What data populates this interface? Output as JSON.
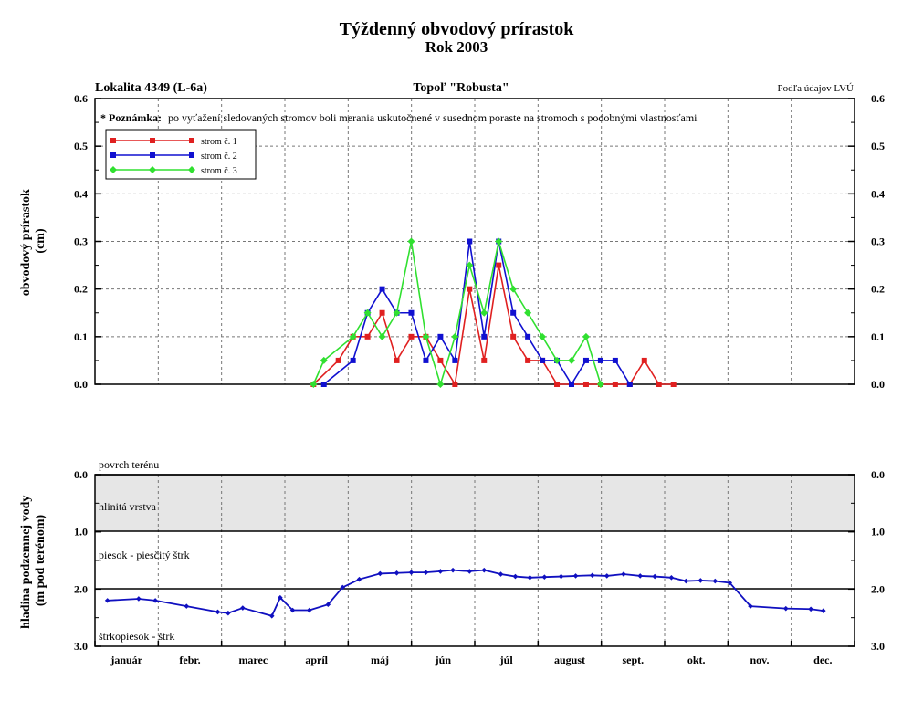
{
  "title": "Týždenný obvodový prírastok",
  "subtitle": "Rok 2003",
  "header": {
    "left": "Lokalita 4349 (L-6a)",
    "center": "Topoľ \"Robusta\"",
    "right": "Podľa údajov LVÚ"
  },
  "note": {
    "label": "* Poznámka:",
    "text": "po vyťažení sledovaných stromov boli merania uskutočnené v susednom poraste na stromoch s podobnými vlastnosťami"
  },
  "months": [
    "január",
    "febr.",
    "marec",
    "apríl",
    "máj",
    "jún",
    "júl",
    "august",
    "sept.",
    "okt.",
    "nov.",
    "dec."
  ],
  "layer_labels": {
    "surface": "povrch terénu",
    "clay": "hlinitá vrstva",
    "sand": "piesok - piesčitý štrk",
    "gravel": "štrkopiesok - štrk"
  },
  "colors": {
    "series1": "#e02020",
    "series2": "#1010d0",
    "series3": "#30e030",
    "groundwater": "#1010c0",
    "clay_fill": "#e6e6e6"
  },
  "chart_data": [
    {
      "type": "line",
      "ylabel": "obvodový prírastok (cm)",
      "ylim": [
        0,
        0.6
      ],
      "yticks": [
        "0.0",
        "0.1",
        "0.2",
        "0.3",
        "0.4",
        "0.5",
        "0.6"
      ],
      "x_unit": "day of year",
      "xlim": [
        0,
        365
      ],
      "grid": true,
      "legend_position": "top-left",
      "series": [
        {
          "name": "strom č. 1",
          "marker": "square",
          "points": [
            [
              105,
              0.0
            ],
            [
              117,
              0.05
            ],
            [
              124,
              0.1
            ],
            [
              131,
              0.1
            ],
            [
              138,
              0.15
            ],
            [
              145,
              0.05
            ],
            [
              152,
              0.1
            ],
            [
              159,
              0.1
            ],
            [
              166,
              0.05
            ],
            [
              173,
              0.0
            ],
            [
              180,
              0.2
            ],
            [
              187,
              0.05
            ],
            [
              194,
              0.25
            ],
            [
              201,
              0.1
            ],
            [
              208,
              0.05
            ],
            [
              215,
              0.05
            ],
            [
              222,
              0.0
            ],
            [
              229,
              0.0
            ],
            [
              236,
              0.0
            ],
            [
              243,
              0.0
            ],
            [
              250,
              0.0
            ],
            [
              257,
              0.0
            ],
            [
              264,
              0.05
            ],
            [
              271,
              0.0
            ],
            [
              278,
              0.0
            ]
          ]
        },
        {
          "name": "strom č. 2",
          "marker": "square",
          "points": [
            [
              110,
              0.0
            ],
            [
              124,
              0.05
            ],
            [
              131,
              0.15
            ],
            [
              138,
              0.2
            ],
            [
              145,
              0.15
            ],
            [
              152,
              0.15
            ],
            [
              159,
              0.05
            ],
            [
              166,
              0.1
            ],
            [
              173,
              0.05
            ],
            [
              180,
              0.3
            ],
            [
              187,
              0.1
            ],
            [
              194,
              0.3
            ],
            [
              201,
              0.15
            ],
            [
              208,
              0.1
            ],
            [
              215,
              0.05
            ],
            [
              222,
              0.05
            ],
            [
              229,
              0.0
            ],
            [
              236,
              0.05
            ],
            [
              243,
              0.05
            ],
            [
              250,
              0.05
            ],
            [
              257,
              0.0
            ]
          ]
        },
        {
          "name": "strom č. 3",
          "marker": "diamond",
          "points": [
            [
              105,
              0.0
            ],
            [
              110,
              0.05
            ],
            [
              124,
              0.1
            ],
            [
              131,
              0.15
            ],
            [
              138,
              0.1
            ],
            [
              145,
              0.15
            ],
            [
              152,
              0.3
            ],
            [
              159,
              0.1
            ],
            [
              166,
              0.0
            ],
            [
              173,
              0.1
            ],
            [
              180,
              0.25
            ],
            [
              187,
              0.15
            ],
            [
              194,
              0.3
            ],
            [
              201,
              0.2
            ],
            [
              208,
              0.15
            ],
            [
              215,
              0.1
            ],
            [
              222,
              0.05
            ],
            [
              229,
              0.05
            ],
            [
              236,
              0.1
            ],
            [
              243,
              0.0
            ]
          ]
        }
      ]
    },
    {
      "type": "line",
      "ylabel": "hladina podzemnej vody (m pod terénom)",
      "ylim": [
        0,
        3
      ],
      "y_inverted": true,
      "yticks": [
        "0.0",
        "1.0",
        "2.0",
        "3.0"
      ],
      "x_unit": "day of year",
      "xlim": [
        0,
        365
      ],
      "series": [
        {
          "name": "hladina podzemnej vody",
          "marker": "diamond",
          "points": [
            [
              6,
              2.2
            ],
            [
              21,
              2.17
            ],
            [
              29,
              2.2
            ],
            [
              44,
              2.3
            ],
            [
              59,
              2.4
            ],
            [
              64,
              2.42
            ],
            [
              71,
              2.33
            ],
            [
              85,
              2.47
            ],
            [
              89,
              2.15
            ],
            [
              95,
              2.37
            ],
            [
              103,
              2.37
            ],
            [
              112,
              2.27
            ],
            [
              119,
              1.97
            ],
            [
              127,
              1.83
            ],
            [
              137,
              1.73
            ],
            [
              145,
              1.72
            ],
            [
              152,
              1.71
            ],
            [
              159,
              1.71
            ],
            [
              166,
              1.69
            ],
            [
              172,
              1.67
            ],
            [
              180,
              1.69
            ],
            [
              187,
              1.67
            ],
            [
              195,
              1.74
            ],
            [
              202,
              1.78
            ],
            [
              209,
              1.8
            ],
            [
              216,
              1.79
            ],
            [
              224,
              1.78
            ],
            [
              231,
              1.77
            ],
            [
              239,
              1.76
            ],
            [
              246,
              1.77
            ],
            [
              254,
              1.74
            ],
            [
              262,
              1.77
            ],
            [
              269,
              1.78
            ],
            [
              277,
              1.8
            ],
            [
              284,
              1.86
            ],
            [
              291,
              1.85
            ],
            [
              298,
              1.86
            ],
            [
              305,
              1.89
            ],
            [
              315,
              2.3
            ],
            [
              332,
              2.34
            ],
            [
              344,
              2.35
            ],
            [
              350,
              2.38
            ]
          ]
        }
      ]
    }
  ]
}
